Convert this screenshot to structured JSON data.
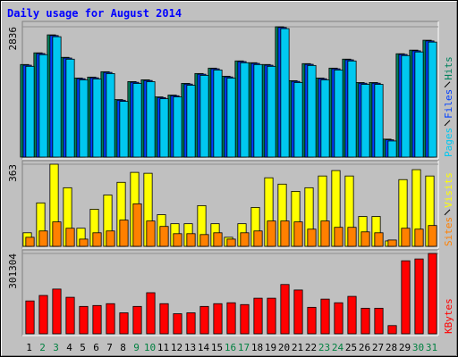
{
  "title": "Daily usage for August 2014",
  "categories": [
    "1",
    "2",
    "3",
    "4",
    "5",
    "6",
    "7",
    "8",
    "9",
    "10",
    "11",
    "12",
    "13",
    "14",
    "15",
    "16",
    "17",
    "18",
    "19",
    "20",
    "21",
    "22",
    "23",
    "24",
    "25",
    "26",
    "27",
    "28",
    "29",
    "30",
    "31"
  ],
  "category_colors": [
    "#000000",
    "#008040",
    "#008040",
    "#000000",
    "#000000",
    "#000000",
    "#000000",
    "#000000",
    "#008040",
    "#008040",
    "#000000",
    "#000000",
    "#000000",
    "#000000",
    "#000000",
    "#008040",
    "#008040",
    "#000000",
    "#000000",
    "#000000",
    "#000000",
    "#000000",
    "#008040",
    "#008040",
    "#000000",
    "#000000",
    "#000000",
    "#000000",
    "#000000",
    "#008040",
    "#008040"
  ],
  "chart_data": [
    {
      "type": "bar",
      "ylim": [
        0,
        2836
      ],
      "yticks": [
        2836
      ],
      "series": [
        {
          "name": "Hits",
          "color": "#00805c",
          "values": [
            2015,
            2269,
            2660,
            2171,
            1721,
            1741,
            1858,
            1252,
            1643,
            1682,
            1310,
            1350,
            1604,
            1819,
            1936,
            1760,
            2093,
            2054,
            2015,
            2836,
            1663,
            2034,
            1721,
            1936,
            2132,
            1623,
            1623,
            391,
            2249,
            2328,
            2543
          ]
        },
        {
          "name": "Files",
          "color": "#0040ff",
          "values": [
            2000,
            2254,
            2645,
            2156,
            1706,
            1726,
            1843,
            1237,
            1628,
            1667,
            1295,
            1335,
            1589,
            1804,
            1921,
            1745,
            2078,
            2039,
            2000,
            2821,
            1648,
            2019,
            1706,
            1921,
            2117,
            1608,
            1608,
            376,
            2234,
            2313,
            2528
          ]
        },
        {
          "name": "Pages",
          "color": "#00c8f0",
          "values": [
            1975,
            2229,
            2620,
            2131,
            1681,
            1701,
            1818,
            1212,
            1603,
            1642,
            1270,
            1310,
            1564,
            1779,
            1896,
            1720,
            2053,
            2014,
            1975,
            2796,
            1623,
            1994,
            1681,
            1896,
            2092,
            1583,
            1583,
            351,
            2209,
            2288,
            2503
          ]
        }
      ]
    },
    {
      "type": "bar",
      "ylim": [
        0,
        363
      ],
      "yticks": [
        363
      ],
      "series": [
        {
          "name": "Visits",
          "color": "#ffff00",
          "values": [
            60,
            192,
            363,
            259,
            80,
            164,
            227,
            283,
            327,
            323,
            140,
            100,
            100,
            180,
            100,
            40,
            100,
            172,
            303,
            275,
            243,
            259,
            311,
            335,
            311,
            132,
            132,
            24,
            295,
            339,
            311
          ]
        },
        {
          "name": "Sites",
          "color": "#ff8000",
          "values": [
            40,
            68,
            108,
            80,
            32,
            60,
            68,
            116,
            188,
            112,
            88,
            56,
            56,
            52,
            60,
            32,
            60,
            68,
            112,
            112,
            108,
            76,
            112,
            84,
            84,
            64,
            60,
            28,
            80,
            76,
            92
          ]
        }
      ]
    },
    {
      "type": "bar",
      "ylim": [
        0,
        301304
      ],
      "yticks": [
        301304
      ],
      "series": [
        {
          "name": "KBytes",
          "color": "#ff0000",
          "values": [
            123264,
            143808,
            167776,
            136960,
            102720,
            106144,
            112992,
            78752,
            102720,
            154080,
            112992,
            75328,
            78752,
            102720,
            112992,
            116416,
            109568,
            133536,
            133536,
            184896,
            164352,
            99296,
            130112,
            116416,
            140384,
            95872,
            95872,
            30816,
            273920,
            280768,
            301304
          ]
        }
      ]
    }
  ]
}
